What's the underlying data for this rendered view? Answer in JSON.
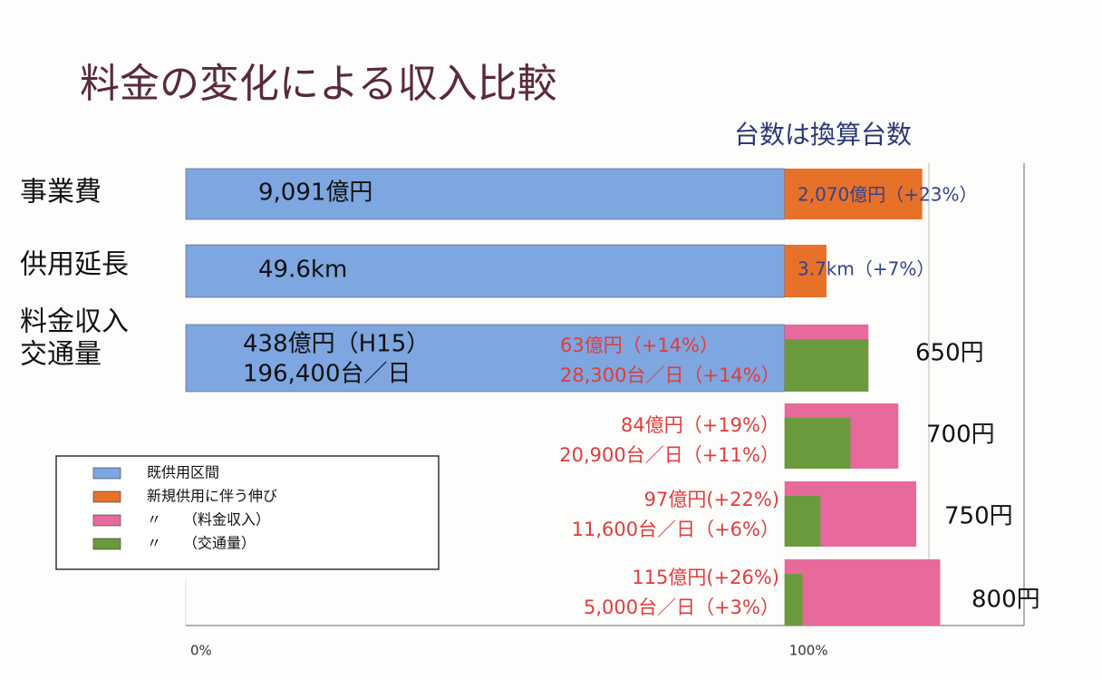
{
  "chart_data": {
    "type": "bar",
    "title": "料金の変化による収入比較",
    "subtitle": "台数は換算台数",
    "orientation": "horizontal",
    "xlim": [
      0,
      140
    ],
    "xticks": [
      {
        "value": 0,
        "label": "0%"
      },
      {
        "value": 100,
        "label": "100%"
      }
    ],
    "categories": [
      [
        "事業費"
      ],
      [
        "供用延長"
      ],
      [
        "料金収入",
        "交通量"
      ],
      null,
      null,
      null
    ],
    "price_labels": [
      null,
      null,
      "650円",
      "700円",
      "750円",
      "800円"
    ],
    "series": [
      {
        "name": "既供用区間",
        "color": "#7ea6e0",
        "values": [
          100,
          100,
          100,
          null,
          null,
          null
        ],
        "value_labels": [
          "9,091億円",
          "49.6km",
          "438億円（H15）",
          null,
          null,
          null
        ]
      },
      {
        "name": "新規供用に伴う伸び",
        "color": "#e8712a",
        "values": [
          23,
          7,
          null,
          null,
          null,
          null
        ],
        "value_labels": [
          "2,070億円（+23%）",
          "3.7km（+7%）",
          null,
          null,
          null,
          null
        ]
      },
      {
        "name": "〃　　（料金収入）",
        "color": "#e86a9c",
        "values": [
          null,
          null,
          14,
          19,
          22,
          26
        ],
        "value_labels": [
          null,
          null,
          "63億円（+14%）",
          "84億円（+19%）",
          "97億円(+22%)",
          "115億円(+26%)"
        ]
      },
      {
        "name": "〃　　（交通量）",
        "color": "#6a9a3c",
        "values": [
          null,
          null,
          14,
          11,
          6,
          3
        ],
        "value_labels": [
          null,
          null,
          "28,300台／日（+14%）",
          "20,900台／日（+11%）",
          "11,600台／日（+6%）",
          "5,000台／日（+3%）"
        ]
      }
    ],
    "base_traffic_label": "196,400台／日"
  }
}
